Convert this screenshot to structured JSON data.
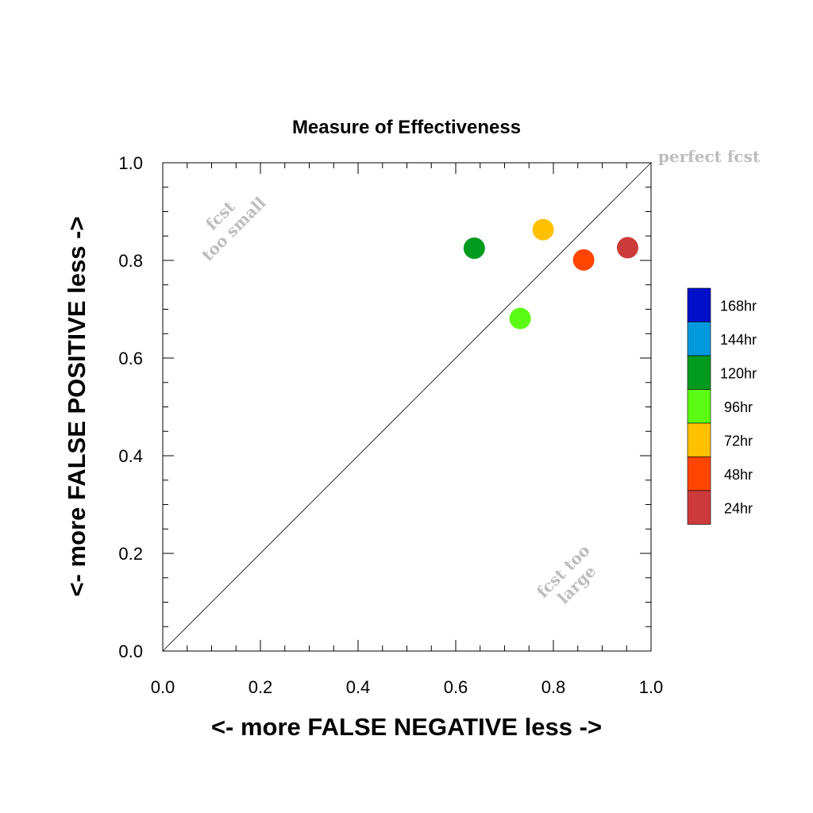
{
  "chart_data": {
    "type": "scatter",
    "title": "Measure of Effectiveness",
    "xlabel": "<- more   FALSE NEGATIVE   less ->",
    "ylabel": "<- more   FALSE POSITIVE   less ->",
    "xlim": [
      0,
      1
    ],
    "ylim": [
      0,
      1
    ],
    "xticks": [
      "0.0",
      "0.2",
      "0.4",
      "0.6",
      "0.8",
      "1.0"
    ],
    "yticks": [
      "0.0",
      "0.2",
      "0.4",
      "0.6",
      "0.8",
      "1.0"
    ],
    "grid": false,
    "reference_line": "y = x",
    "annotations": {
      "perfect": "perfect fcst",
      "small_line1": "fcst",
      "small_line2": "too small",
      "large_line1": "fcst too",
      "large_line2": "large"
    },
    "legend": {
      "placement": "right",
      "entries": [
        {
          "label": "168hr",
          "color": "#0010c8"
        },
        {
          "label": "144hr",
          "color": "#0099dd"
        },
        {
          "label": "120hr",
          "color": "#009a1e"
        },
        {
          "label": "96hr",
          "color": "#5cfb14"
        },
        {
          "label": "72hr",
          "color": "#ffc000"
        },
        {
          "label": "48hr",
          "color": "#ff4500"
        },
        {
          "label": "24hr",
          "color": "#cc3a3a"
        }
      ]
    },
    "points": [
      {
        "lead": "24hr",
        "x": 0.952,
        "y": 0.826,
        "color": "#cc3a3a"
      },
      {
        "lead": "48hr",
        "x": 0.862,
        "y": 0.801,
        "color": "#ff4500"
      },
      {
        "lead": "72hr",
        "x": 0.779,
        "y": 0.863,
        "color": "#ffc000"
      },
      {
        "lead": "96hr",
        "x": 0.732,
        "y": 0.681,
        "color": "#5cfb14"
      },
      {
        "lead": "120hr",
        "x": 0.638,
        "y": 0.825,
        "color": "#009a1e"
      }
    ]
  }
}
